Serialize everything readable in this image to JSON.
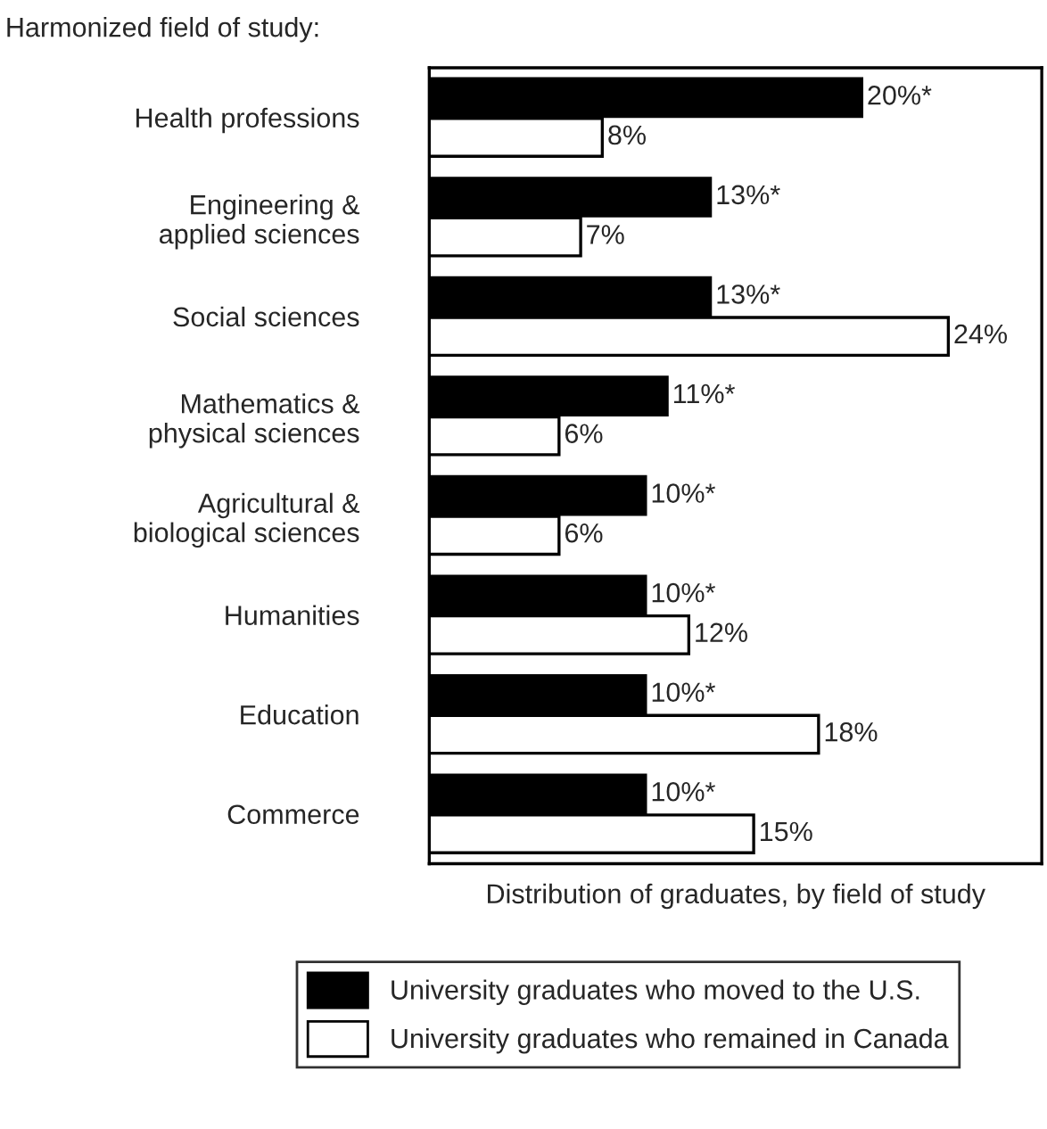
{
  "chart_data": {
    "type": "bar",
    "orientation": "horizontal",
    "title": "Harmonized field of study:",
    "xlabel": "Distribution of graduates, by field of study",
    "categories": [
      "Health professions",
      "Engineering &\napplied sciences",
      "Social sciences",
      "Mathematics &\nphysical sciences",
      "Agricultural &\nbiological sciences",
      "Humanities",
      "Education",
      "Commerce"
    ],
    "series": [
      {
        "name": "University graduates who moved to the U.S.",
        "color": "#000000",
        "values": [
          20,
          13,
          13,
          11,
          10,
          10,
          10,
          10
        ],
        "value_labels": [
          "20%*",
          "13%*",
          "13%*",
          "11%*",
          "10%*",
          "10%*",
          "10%*",
          "10%*"
        ]
      },
      {
        "name": "University graduates who remained in Canada",
        "color": "#ffffff",
        "values": [
          8,
          7,
          24,
          6,
          6,
          12,
          18,
          15
        ],
        "value_labels": [
          "8%",
          "7%",
          "24%",
          "6%",
          "6%",
          "12%",
          "18%",
          "15%"
        ]
      }
    ],
    "legend": "bottom",
    "grid": false
  }
}
